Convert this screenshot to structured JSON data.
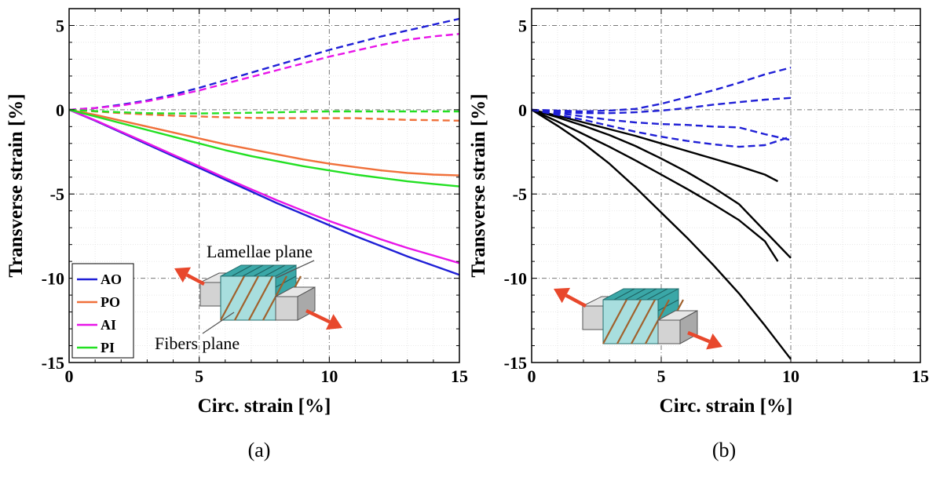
{
  "chart_data": [
    {
      "type": "line",
      "panel_label": "(a)",
      "xlabel": "Circ. strain [%]",
      "ylabel": "Transverse strain [%]",
      "xlim": [
        0,
        15
      ],
      "ylim": [
        -15,
        6
      ],
      "xticks": [
        0,
        5,
        10,
        15
      ],
      "yticks": [
        5,
        0,
        -5,
        -10,
        -15
      ],
      "grid": true,
      "legend_position": "bottom-left",
      "legend": [
        {
          "label": "AO",
          "color": "#1f1fd6"
        },
        {
          "label": "PO",
          "color": "#f0703a"
        },
        {
          "label": "AI",
          "color": "#e815e8"
        },
        {
          "label": "PI",
          "color": "#22e022"
        }
      ],
      "annotations": [
        "Lamellae plane",
        "Fibers plane"
      ],
      "series": [
        {
          "name": "AO",
          "color": "#1f1fd6",
          "style": "solid",
          "x": [
            0,
            1,
            2,
            3,
            4,
            5,
            6,
            7,
            8,
            9,
            10,
            11,
            12,
            13,
            14,
            15
          ],
          "y": [
            0,
            -0.65,
            -1.35,
            -2.05,
            -2.75,
            -3.45,
            -4.15,
            -4.85,
            -5.55,
            -6.2,
            -6.85,
            -7.5,
            -8.1,
            -8.7,
            -9.25,
            -9.8
          ]
        },
        {
          "name": "AO",
          "color": "#1f1fd6",
          "style": "dashed",
          "x": [
            0,
            1,
            2,
            3,
            4,
            5,
            6,
            7,
            8,
            9,
            10,
            11,
            12,
            13,
            14,
            15
          ],
          "y": [
            0,
            0.1,
            0.3,
            0.55,
            0.9,
            1.3,
            1.75,
            2.2,
            2.65,
            3.1,
            3.55,
            3.95,
            4.35,
            4.7,
            5.05,
            5.4
          ]
        },
        {
          "name": "PO",
          "color": "#f0703a",
          "style": "solid",
          "x": [
            0,
            1,
            2,
            3,
            4,
            5,
            6,
            7,
            8,
            9,
            10,
            11,
            12,
            13,
            14,
            15
          ],
          "y": [
            0,
            -0.3,
            -0.65,
            -1.0,
            -1.35,
            -1.7,
            -2.05,
            -2.35,
            -2.65,
            -2.95,
            -3.2,
            -3.4,
            -3.6,
            -3.75,
            -3.85,
            -3.9
          ]
        },
        {
          "name": "PO",
          "color": "#f0703a",
          "style": "dashed",
          "x": [
            0,
            1,
            2,
            3,
            4,
            5,
            6,
            7,
            8,
            9,
            10,
            11,
            12,
            13,
            14,
            15
          ],
          "y": [
            0,
            -0.1,
            -0.2,
            -0.28,
            -0.35,
            -0.4,
            -0.45,
            -0.48,
            -0.5,
            -0.5,
            -0.5,
            -0.5,
            -0.55,
            -0.6,
            -0.62,
            -0.65
          ]
        },
        {
          "name": "AI",
          "color": "#e815e8",
          "style": "solid",
          "x": [
            0,
            1,
            2,
            3,
            4,
            5,
            6,
            7,
            8,
            9,
            10,
            11,
            12,
            13,
            14,
            15
          ],
          "y": [
            0,
            -0.62,
            -1.3,
            -1.98,
            -2.67,
            -3.35,
            -4.05,
            -4.72,
            -5.38,
            -6.0,
            -6.6,
            -7.15,
            -7.7,
            -8.2,
            -8.65,
            -9.1
          ]
        },
        {
          "name": "AI",
          "color": "#e815e8",
          "style": "dashed",
          "x": [
            0,
            1,
            2,
            3,
            4,
            5,
            6,
            7,
            8,
            9,
            10,
            11,
            12,
            13,
            14,
            15
          ],
          "y": [
            0,
            0.1,
            0.25,
            0.5,
            0.8,
            1.15,
            1.55,
            1.95,
            2.35,
            2.75,
            3.15,
            3.5,
            3.85,
            4.15,
            4.35,
            4.5
          ]
        },
        {
          "name": "PI",
          "color": "#22e022",
          "style": "solid",
          "x": [
            0,
            1,
            2,
            3,
            4,
            5,
            6,
            7,
            8,
            9,
            10,
            11,
            12,
            13,
            14,
            15
          ],
          "y": [
            0,
            -0.4,
            -0.8,
            -1.2,
            -1.6,
            -2.0,
            -2.4,
            -2.75,
            -3.05,
            -3.35,
            -3.6,
            -3.85,
            -4.05,
            -4.25,
            -4.4,
            -4.55
          ]
        },
        {
          "name": "PI",
          "color": "#22e022",
          "style": "dashed",
          "x": [
            0,
            1,
            2,
            3,
            4,
            5,
            6,
            7,
            8,
            9,
            10,
            11,
            12,
            13,
            14,
            15
          ],
          "y": [
            0,
            -0.08,
            -0.15,
            -0.2,
            -0.22,
            -0.22,
            -0.2,
            -0.18,
            -0.15,
            -0.12,
            -0.1,
            -0.1,
            -0.1,
            -0.1,
            -0.1,
            -0.1
          ]
        }
      ]
    },
    {
      "type": "line",
      "panel_label": "(b)",
      "xlabel": "Circ. strain [%]",
      "ylabel": "Transverse strain [%]",
      "xlim": [
        0,
        15
      ],
      "ylim": [
        -15,
        6
      ],
      "xticks": [
        0,
        5,
        10,
        15
      ],
      "yticks": [
        5,
        0,
        -5,
        -10,
        -15
      ],
      "grid": true,
      "series": [
        {
          "color": "#000000",
          "style": "solid",
          "x": [
            0,
            1,
            2,
            3,
            4,
            5,
            6,
            7,
            8,
            9,
            9.5
          ],
          "y": [
            0,
            -0.35,
            -0.75,
            -1.15,
            -1.55,
            -2.0,
            -2.45,
            -2.9,
            -3.35,
            -3.85,
            -4.25
          ]
        },
        {
          "color": "#000000",
          "style": "solid",
          "x": [
            0,
            1,
            2,
            3,
            4,
            5,
            6,
            7,
            8,
            9,
            9.5
          ],
          "y": [
            0,
            -0.7,
            -1.45,
            -2.2,
            -3.0,
            -3.85,
            -4.7,
            -5.6,
            -6.55,
            -7.8,
            -9.0
          ]
        },
        {
          "color": "#000000",
          "style": "solid",
          "x": [
            0,
            1,
            2,
            3,
            4,
            5,
            6,
            7,
            8,
            9,
            10
          ],
          "y": [
            0,
            -0.45,
            -0.95,
            -1.5,
            -2.15,
            -2.9,
            -3.7,
            -4.6,
            -5.6,
            -7.2,
            -8.8
          ]
        },
        {
          "color": "#000000",
          "style": "solid",
          "x": [
            0,
            1,
            2,
            3,
            4,
            5,
            6,
            7,
            8,
            9,
            10
          ],
          "y": [
            0,
            -0.95,
            -2.0,
            -3.2,
            -4.6,
            -6.1,
            -7.6,
            -9.2,
            -10.9,
            -12.8,
            -14.8
          ]
        },
        {
          "color": "#1f1fd6",
          "style": "dashed",
          "x": [
            0,
            1,
            2,
            3,
            4,
            5,
            6,
            7,
            8,
            9,
            10
          ],
          "y": [
            0,
            -0.05,
            -0.1,
            -0.05,
            0.05,
            0.35,
            0.75,
            1.15,
            1.6,
            2.1,
            2.5
          ]
        },
        {
          "color": "#1f1fd6",
          "style": "dashed",
          "x": [
            0,
            1,
            2,
            3,
            4,
            5,
            6,
            7,
            8,
            9,
            10
          ],
          "y": [
            0,
            -0.15,
            -0.2,
            -0.2,
            -0.15,
            -0.05,
            0.1,
            0.3,
            0.45,
            0.6,
            0.7
          ]
        },
        {
          "color": "#1f1fd6",
          "style": "dashed",
          "x": [
            0,
            1,
            2,
            3,
            4,
            5,
            6,
            7,
            8,
            9,
            10
          ],
          "y": [
            0,
            -0.2,
            -0.4,
            -0.6,
            -0.75,
            -0.85,
            -0.9,
            -1.0,
            -1.05,
            -1.45,
            -1.8
          ]
        },
        {
          "color": "#1f1fd6",
          "style": "dashed",
          "x": [
            0,
            1,
            2,
            3,
            4,
            5,
            6,
            7,
            8,
            9,
            10
          ],
          "y": [
            0,
            -0.3,
            -0.6,
            -0.95,
            -1.3,
            -1.6,
            -1.85,
            -2.05,
            -2.2,
            -2.1,
            -1.6
          ]
        }
      ]
    }
  ]
}
